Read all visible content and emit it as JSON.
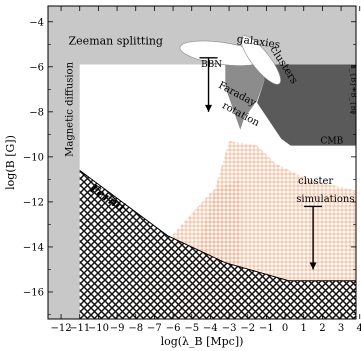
{
  "chart_data": {
    "type": "area",
    "xlabel": "log(λ_B [Mpc])",
    "ylabel": "log(B [G])",
    "xlim": [
      -12.7,
      3.8
    ],
    "ylim": [
      -17.2,
      -3.3
    ],
    "x_ticks": [
      -12,
      -11,
      -10,
      -9,
      -8,
      -7,
      -6,
      -5,
      -4,
      -3,
      -2,
      -1,
      0,
      1,
      2,
      3,
      4
    ],
    "y_ticks": [
      -4,
      -6,
      -8,
      -10,
      -12,
      -14,
      -16
    ],
    "x_tick_labels": [
      "−12",
      "−11",
      "−10",
      "−9",
      "−8",
      "−7",
      "−6",
      "−5",
      "−4",
      "−3",
      "−2",
      "−1",
      "0",
      "1",
      "2",
      "3",
      "4"
    ],
    "y_tick_labels": [
      "−4",
      "−6",
      "−8",
      "−10",
      "−12",
      "−14",
      "−16"
    ],
    "grid": false,
    "colors": {
      "excluded": "#c8c8c8",
      "faraday": "#8c8c8c",
      "cmb": "#5a5a5a",
      "fermi_hatch": "#000000",
      "simulation_hatch": "#f0a078",
      "background": "#ffffff"
    },
    "regions": [
      {
        "name": "Faraday rotation",
        "polygon": [
          [
            -3.2,
            -5.9
          ],
          [
            -1.3,
            -5.9
          ],
          [
            -1.1,
            -6.6
          ],
          [
            -1.5,
            -7.5
          ],
          [
            -2.2,
            -8.3
          ],
          [
            -2.4,
            -8.8
          ],
          [
            -3.2,
            -6.9
          ]
        ]
      },
      {
        "name": "CMB",
        "polygon": [
          [
            -1.3,
            -5.9
          ],
          [
            3.8,
            -5.9
          ],
          [
            3.8,
            -9.5
          ],
          [
            0.3,
            -9.5
          ],
          [
            -0.2,
            -9.2
          ],
          [
            -1.5,
            -7.6
          ],
          [
            -1.1,
            -6.6
          ]
        ]
      }
    ],
    "fermi_hatch": {
      "name": "Fermi",
      "upper_boundary": [
        [
          -11.0,
          -10.6
        ],
        [
          -6.3,
          -13.5
        ],
        [
          -3.2,
          -14.7
        ],
        [
          0.2,
          -15.5
        ],
        [
          3.8,
          -15.5
        ]
      ],
      "ymin": -17.2
    },
    "simulation_hatch": [
      {
        "polygon": [
          [
            -5.8,
            -17.2
          ],
          [
            -3.0,
            -9.3
          ],
          [
            -1.5,
            -9.5
          ],
          [
            -0.5,
            -10.3
          ],
          [
            1.2,
            -11.0
          ],
          [
            3.8,
            -11.5
          ],
          [
            3.8,
            -17.2
          ]
        ]
      },
      {
        "polygon": [
          [
            -8.6,
            -17.2
          ],
          [
            -6.6,
            -14.0
          ],
          [
            -3.9,
            -11.5
          ],
          [
            -2.4,
            -11.0
          ],
          [
            -2.4,
            -17.2
          ]
        ]
      }
    ],
    "upper_limits": [
      {
        "label": "BBN",
        "x": -4.1,
        "y_from": -5.6,
        "y_to": -8.0
      },
      {
        "label": "",
        "x": 1.5,
        "y_from": -12.2,
        "y_to": -15.0
      }
    ],
    "blobs": [
      {
        "x": -3.4,
        "y": -5.4
      },
      {
        "x": -1.3,
        "y": -5.7
      }
    ],
    "annotations": [
      {
        "text": "Zeeman splitting",
        "x": -11.6,
        "y": -5.0,
        "size": 11,
        "rotate": 0,
        "fill": "#000000"
      },
      {
        "text": "Magnetic diffusion",
        "x": -11.4,
        "y": -10.0,
        "size": 10,
        "rotate": -90,
        "fill": "#000000"
      },
      {
        "text": "Fermi",
        "x": -10.5,
        "y": -11.5,
        "size": 12,
        "rotate": 33,
        "fill": "#000000",
        "italic": true
      },
      {
        "text": "galaxies",
        "x": -2.6,
        "y": -4.9,
        "size": 10.5,
        "rotate": 8,
        "fill": "#ffffff"
      },
      {
        "text": "clusters",
        "x": -0.8,
        "y": -5.2,
        "size": 10.5,
        "rotate": 58,
        "fill": "#ffffff"
      },
      {
        "text": "BBN",
        "x": -4.5,
        "y": -6.0,
        "size": 9,
        "rotate": 0,
        "fill": "#000000"
      },
      {
        "text": "Faraday",
        "x": -3.6,
        "y": -6.9,
        "size": 10,
        "rotate": 28,
        "fill": "#000000"
      },
      {
        "text": "rotation",
        "x": -3.4,
        "y": -7.8,
        "size": 10,
        "rotate": 28,
        "fill": "#000000"
      },
      {
        "text": "CMB",
        "x": 1.9,
        "y": -9.4,
        "size": 9,
        "rotate": 0,
        "fill": "#000000"
      },
      {
        "text": "cluster",
        "x": 0.7,
        "y": -11.2,
        "size": 10,
        "rotate": 0,
        "fill": "#000000"
      },
      {
        "text": "simulations",
        "x": 0.6,
        "y": -12.0,
        "size": 10,
        "rotate": 0,
        "fill": "#000000"
      },
      {
        "text": "n_{B}=B_{B}",
        "x": 3.55,
        "y": -5.9,
        "size": 7,
        "rotate": 90,
        "fill": "#000000"
      }
    ]
  }
}
